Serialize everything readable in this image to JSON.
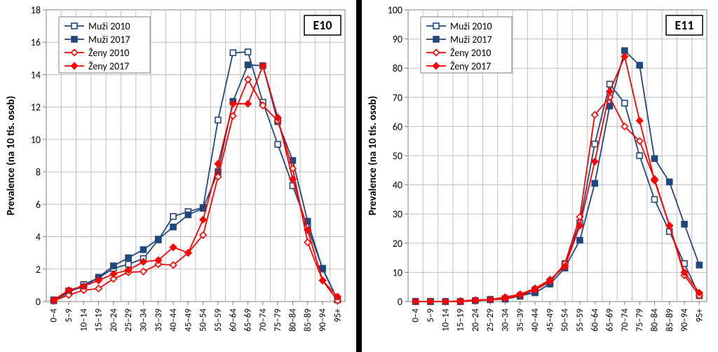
{
  "background_color": "#000000",
  "panel_bg": "#ffffff",
  "grid_color": "#bfbfbf",
  "axis_color": "#808080",
  "ylabel": "Prevalence (na 10 tis. osob)",
  "ylabel_fontsize": 15,
  "x_categories": [
    "0–4",
    "5–9",
    "10–14",
    "15–19",
    "20–24",
    "25–29",
    "30–34",
    "35–39",
    "40–44",
    "45–49",
    "50–54",
    "55–59",
    "60–64",
    "65–69",
    "70–74",
    "75–79",
    "80–84",
    "85–89",
    "90–94",
    "95+"
  ],
  "series_keys": [
    "muzi2010",
    "muzi2017",
    "zeny2010",
    "zeny2017"
  ],
  "series_style": {
    "muzi2010": {
      "label": "Muži 2010",
      "color": "#1f497d",
      "marker": "square",
      "filled": false,
      "lw": 1.8,
      "ms": 8
    },
    "muzi2017": {
      "label": "Muži 2017",
      "color": "#1f497d",
      "marker": "square",
      "filled": true,
      "lw": 1.8,
      "ms": 8
    },
    "zeny2010": {
      "label": "Ženy 2010",
      "color": "#ff0000",
      "marker": "diamond",
      "filled": false,
      "lw": 1.8,
      "ms": 9
    },
    "zeny2017": {
      "label": "Ženy 2017",
      "color": "#ff0000",
      "marker": "diamond",
      "filled": true,
      "lw": 1.8,
      "ms": 9
    }
  },
  "panels": [
    {
      "tag": "E10",
      "ylim": [
        0,
        18
      ],
      "ytick_step": 2,
      "data": {
        "muzi2010": [
          0.05,
          0.55,
          1.05,
          1.45,
          2.05,
          2.3,
          2.65,
          3.8,
          5.25,
          5.55,
          5.8,
          11.2,
          15.35,
          15.4,
          12.3,
          9.7,
          7.15,
          4.6,
          2.05,
          0.1
        ],
        "muzi2017": [
          0.1,
          0.65,
          0.9,
          1.5,
          2.2,
          2.7,
          3.2,
          3.85,
          4.6,
          5.35,
          5.75,
          8.0,
          12.35,
          14.6,
          14.55,
          11.1,
          8.7,
          4.95,
          2.0,
          0.1
        ],
        "zeny2010": [
          0.05,
          0.4,
          0.7,
          0.8,
          1.4,
          1.8,
          1.85,
          2.3,
          2.25,
          3.0,
          4.1,
          7.7,
          11.45,
          13.7,
          12.1,
          11.15,
          8.2,
          3.65,
          1.3,
          0.05
        ],
        "zeny2017": [
          0.1,
          0.7,
          0.95,
          1.3,
          1.7,
          1.95,
          2.45,
          2.55,
          3.35,
          3.0,
          5.05,
          8.5,
          12.2,
          12.2,
          14.55,
          11.35,
          7.55,
          4.4,
          1.3,
          0.3
        ]
      }
    },
    {
      "tag": "E11",
      "ylim": [
        0,
        100
      ],
      "ytick_step": 10,
      "data": {
        "muzi2010": [
          0,
          0,
          0,
          0,
          0.3,
          0.6,
          1.0,
          1.8,
          4.0,
          6.7,
          13,
          27,
          54,
          74.5,
          68,
          50,
          35,
          24,
          13,
          2
        ],
        "muzi2017": [
          0,
          0,
          0,
          0,
          0.3,
          0.7,
          0.8,
          2.0,
          3.0,
          6.0,
          11.5,
          21,
          40.5,
          67,
          86,
          81,
          49,
          41,
          26.5,
          12.5
        ],
        "zeny2010": [
          0,
          0,
          0,
          0,
          0.3,
          0.6,
          1.0,
          2.2,
          4.0,
          7.0,
          13,
          29,
          64,
          70,
          60,
          55,
          42,
          26,
          9,
          2
        ],
        "zeny2017": [
          0,
          0,
          0,
          0.2,
          0.5,
          0.7,
          1.5,
          2.5,
          4.5,
          7.5,
          12,
          26,
          48,
          72,
          84,
          62,
          41.5,
          26,
          10,
          3
        ]
      }
    }
  ]
}
